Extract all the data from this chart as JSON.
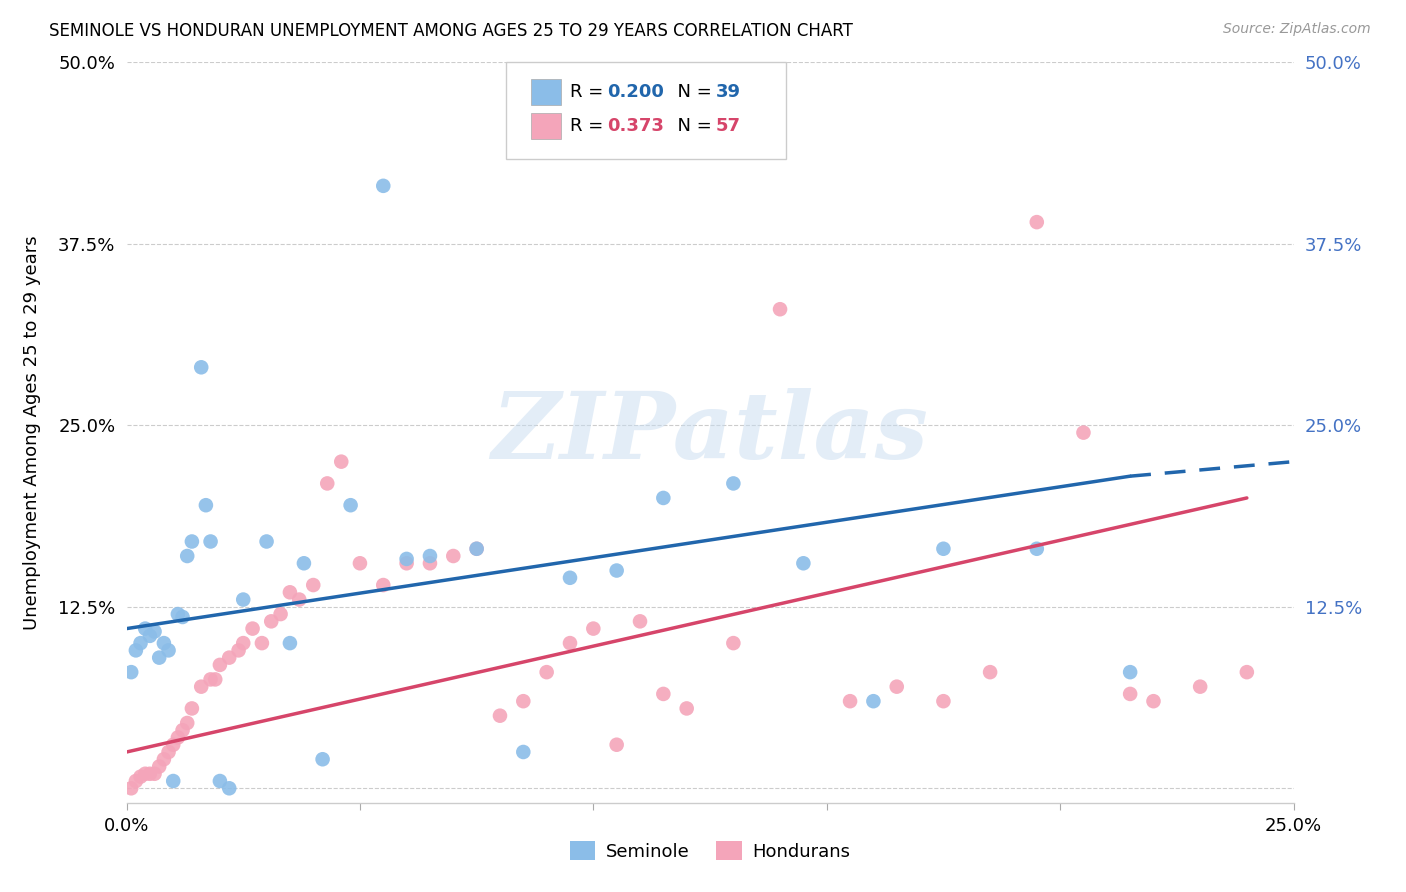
{
  "title": "SEMINOLE VS HONDURAN UNEMPLOYMENT AMONG AGES 25 TO 29 YEARS CORRELATION CHART",
  "source": "Source: ZipAtlas.com",
  "ylabel": "Unemployment Among Ages 25 to 29 years",
  "xlim": [
    0.0,
    0.25
  ],
  "ylim": [
    -0.01,
    0.5
  ],
  "seminole_R": "0.200",
  "seminole_N": "39",
  "honduran_R": "0.373",
  "honduran_N": "57",
  "seminole_color": "#8BBDE8",
  "honduran_color": "#F4A5BA",
  "seminole_line_color": "#2166AC",
  "honduran_line_color": "#D6456A",
  "right_tick_color": "#4472C4",
  "watermark_color": "#C8DCF0",
  "watermark_text": "ZIPatlas",
  "legend_seminole_label": "Seminole",
  "legend_honduran_label": "Hondurans",
  "seminole_x": [
    0.001,
    0.002,
    0.003,
    0.004,
    0.005,
    0.006,
    0.007,
    0.008,
    0.009,
    0.01,
    0.011,
    0.012,
    0.013,
    0.014,
    0.016,
    0.017,
    0.018,
    0.02,
    0.022,
    0.025,
    0.03,
    0.035,
    0.038,
    0.042,
    0.048,
    0.055,
    0.06,
    0.065,
    0.075,
    0.085,
    0.095,
    0.105,
    0.115,
    0.13,
    0.145,
    0.16,
    0.175,
    0.195,
    0.215
  ],
  "seminole_y": [
    0.08,
    0.095,
    0.1,
    0.11,
    0.105,
    0.108,
    0.09,
    0.1,
    0.095,
    0.005,
    0.12,
    0.118,
    0.16,
    0.17,
    0.29,
    0.195,
    0.17,
    0.005,
    0.0,
    0.13,
    0.17,
    0.1,
    0.155,
    0.02,
    0.195,
    0.415,
    0.158,
    0.16,
    0.165,
    0.025,
    0.145,
    0.15,
    0.2,
    0.21,
    0.155,
    0.06,
    0.165,
    0.165,
    0.08
  ],
  "honduran_x": [
    0.001,
    0.002,
    0.003,
    0.004,
    0.005,
    0.006,
    0.007,
    0.008,
    0.009,
    0.01,
    0.011,
    0.012,
    0.013,
    0.014,
    0.016,
    0.018,
    0.019,
    0.02,
    0.022,
    0.024,
    0.025,
    0.027,
    0.029,
    0.031,
    0.033,
    0.035,
    0.037,
    0.04,
    0.043,
    0.046,
    0.05,
    0.055,
    0.06,
    0.065,
    0.07,
    0.075,
    0.08,
    0.085,
    0.09,
    0.095,
    0.1,
    0.105,
    0.11,
    0.115,
    0.12,
    0.13,
    0.14,
    0.155,
    0.165,
    0.175,
    0.185,
    0.195,
    0.205,
    0.215,
    0.22,
    0.23,
    0.24
  ],
  "honduran_y": [
    0.0,
    0.005,
    0.008,
    0.01,
    0.01,
    0.01,
    0.015,
    0.02,
    0.025,
    0.03,
    0.035,
    0.04,
    0.045,
    0.055,
    0.07,
    0.075,
    0.075,
    0.085,
    0.09,
    0.095,
    0.1,
    0.11,
    0.1,
    0.115,
    0.12,
    0.135,
    0.13,
    0.14,
    0.21,
    0.225,
    0.155,
    0.14,
    0.155,
    0.155,
    0.16,
    0.165,
    0.05,
    0.06,
    0.08,
    0.1,
    0.11,
    0.03,
    0.115,
    0.065,
    0.055,
    0.1,
    0.33,
    0.06,
    0.07,
    0.06,
    0.08,
    0.39,
    0.245,
    0.065,
    0.06,
    0.07,
    0.08
  ],
  "line_seminole_x0": 0.0,
  "line_seminole_y0": 0.11,
  "line_seminole_x1": 0.215,
  "line_seminole_y1": 0.215,
  "line_seminole_dash_x0": 0.215,
  "line_seminole_dash_y0": 0.215,
  "line_seminole_dash_x1": 0.25,
  "line_seminole_dash_y1": 0.225,
  "line_honduran_x0": 0.0,
  "line_honduran_y0": 0.025,
  "line_honduran_x1": 0.24,
  "line_honduran_y1": 0.2
}
